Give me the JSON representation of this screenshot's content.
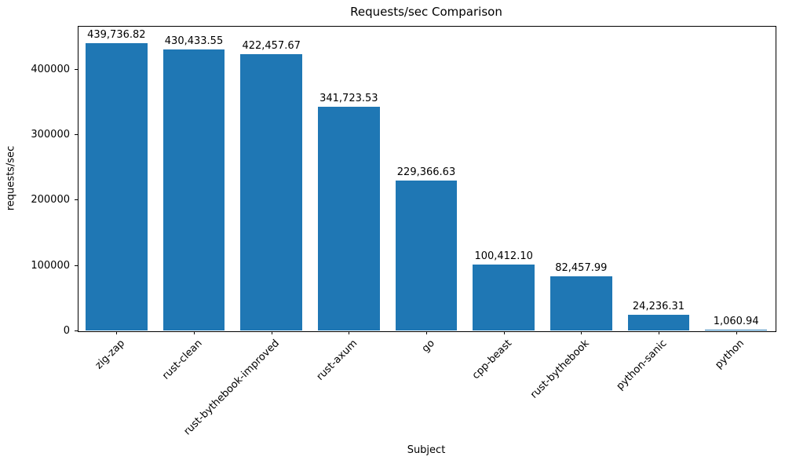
{
  "chart_data": {
    "type": "bar",
    "title": "Requests/sec Comparison",
    "xlabel": "Subject",
    "ylabel": "requests/sec",
    "categories": [
      "zig-zap",
      "rust-clean",
      "rust-bythebook-improved",
      "rust-axum",
      "go",
      "cpp-beast",
      "rust-bythebook",
      "python-sanic",
      "python"
    ],
    "values": [
      439736.82,
      430433.55,
      422457.67,
      341723.53,
      229366.63,
      100412.1,
      82457.99,
      24236.31,
      1060.94
    ],
    "value_labels": [
      "439,736.82",
      "430,433.55",
      "422,457.67",
      "341,723.53",
      "229,366.63",
      "100,412.10",
      "82,457.99",
      "24,236.31",
      "1,060.94"
    ],
    "yticks": [
      0,
      100000,
      200000,
      300000,
      400000
    ],
    "ytick_labels": [
      "0",
      "100000",
      "200000",
      "300000",
      "400000"
    ],
    "ylim": [
      0,
      466000
    ],
    "bar_color": "#1f77b4",
    "bar_width_fraction": 0.8,
    "grid": false,
    "legend": null
  }
}
